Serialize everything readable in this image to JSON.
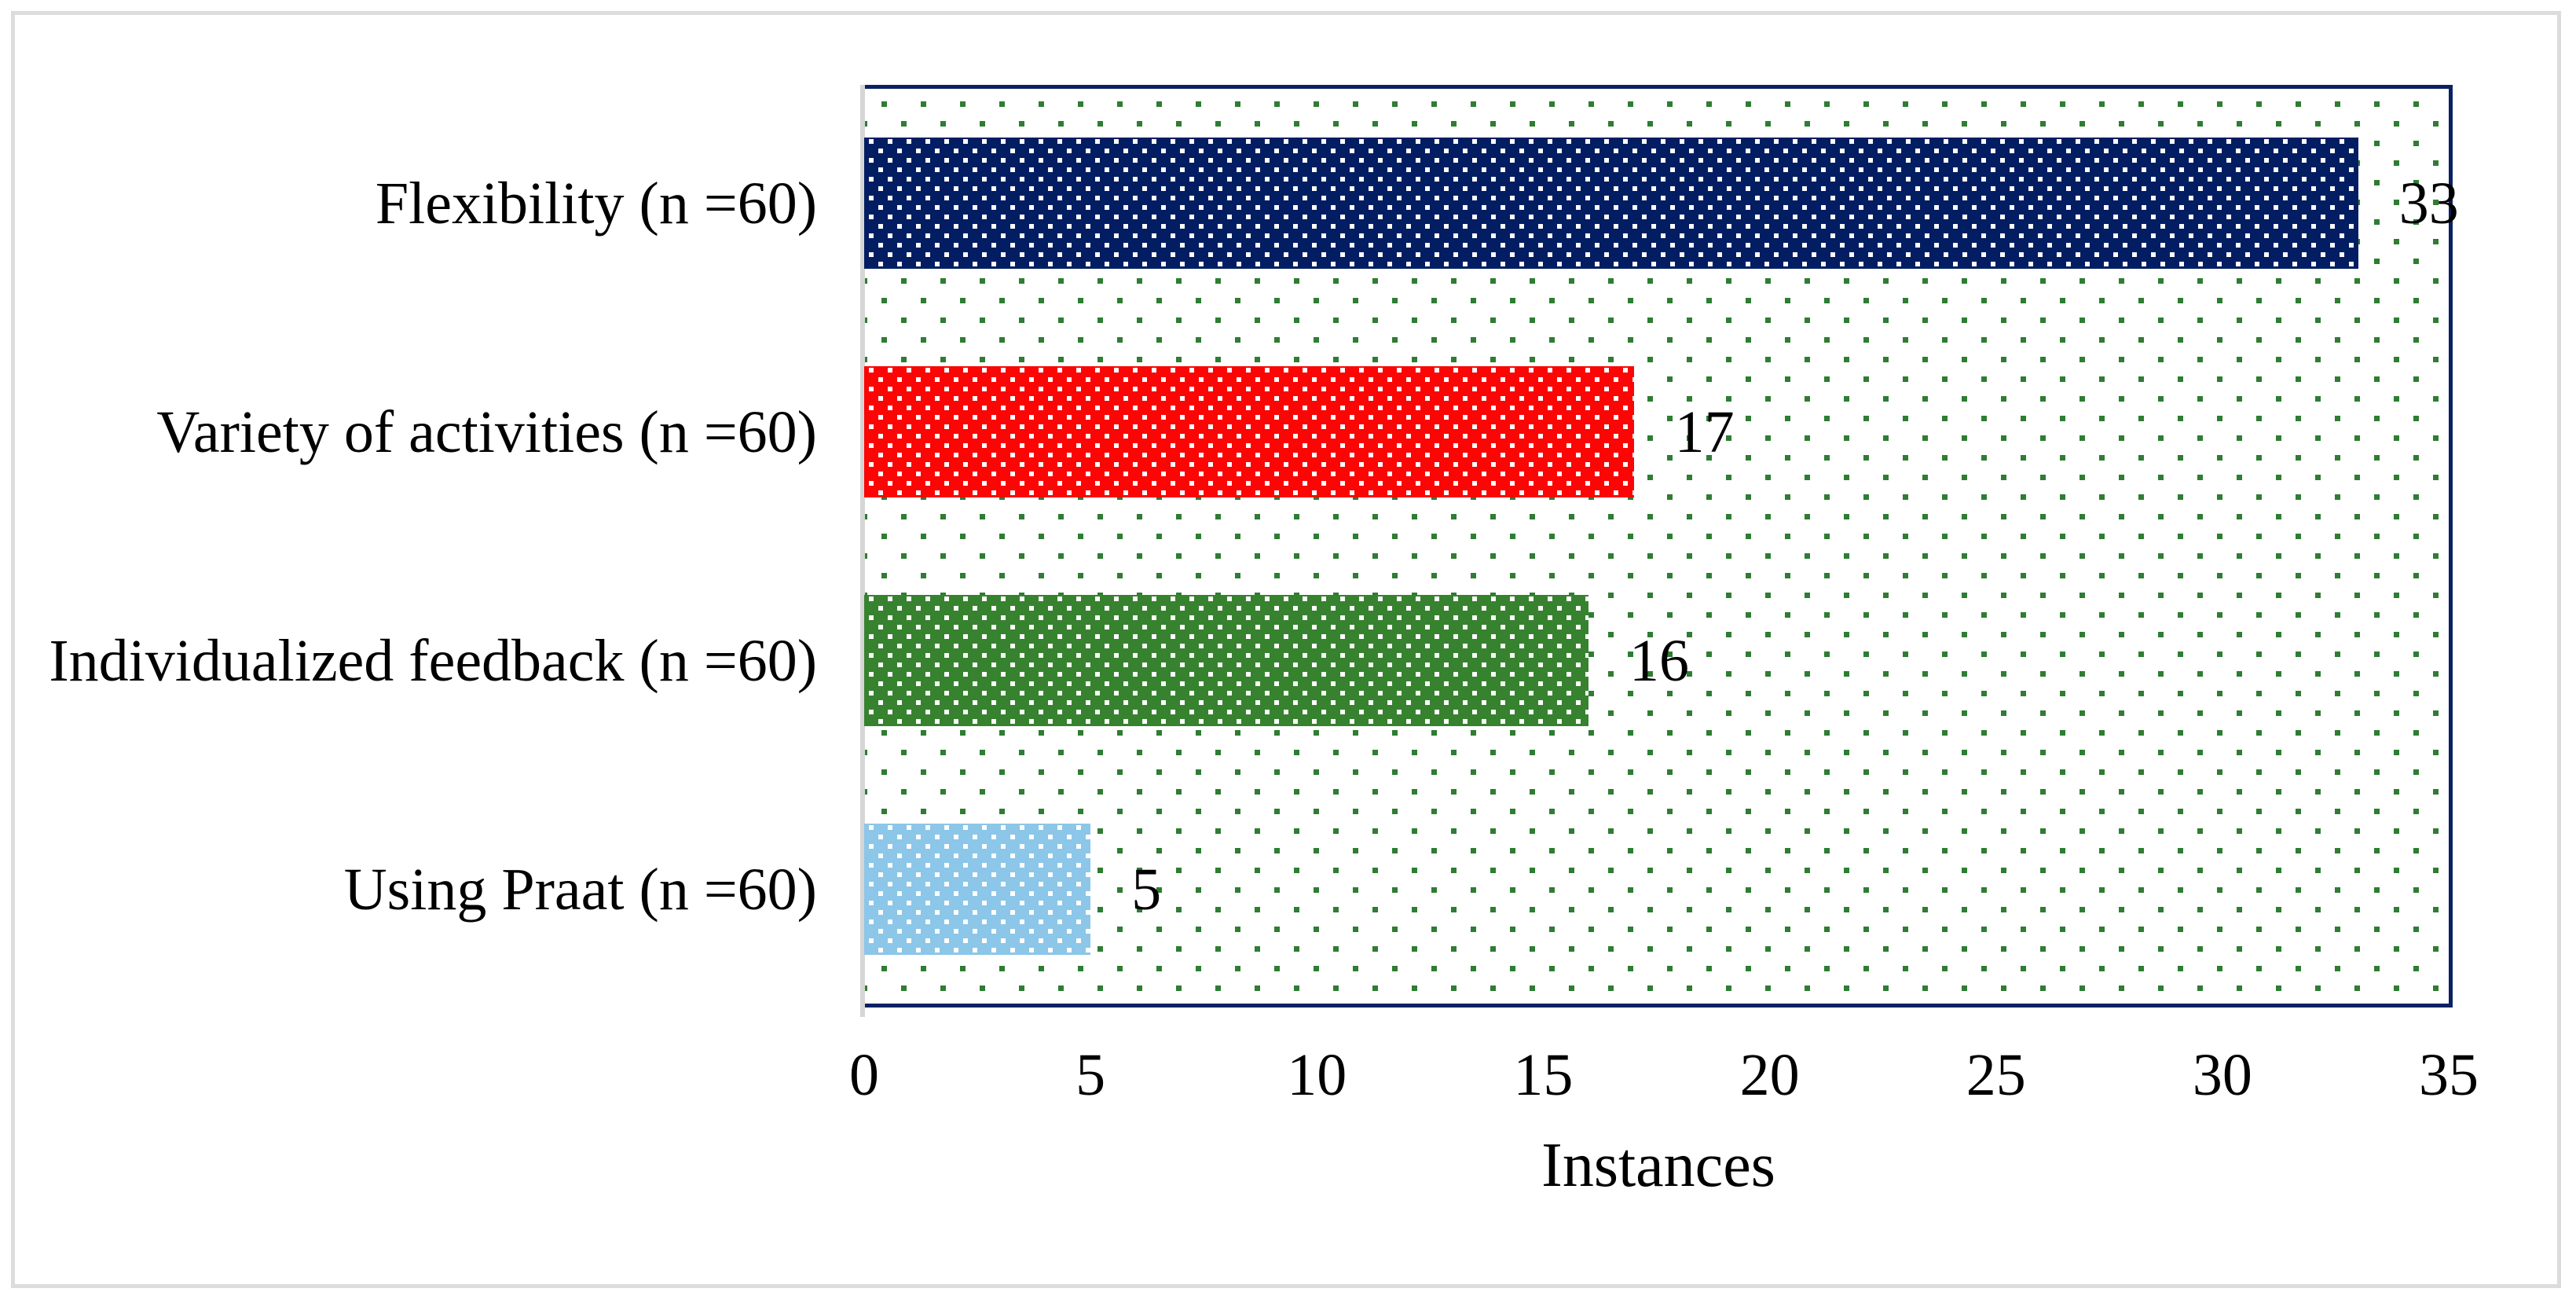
{
  "figure": {
    "background": "#ffffff",
    "border_color": "#dcdcdc"
  },
  "chart_data": {
    "type": "bar",
    "orientation": "horizontal",
    "title": "",
    "categories": [
      "Flexibility (n =60)",
      "Variety of activities (n =60)",
      "Individualized feedback (n =60)",
      "Using Praat (n =60)"
    ],
    "values": [
      33,
      17,
      16,
      5
    ],
    "data_labels": [
      "33",
      "17",
      "16",
      "5"
    ],
    "bar_colors": [
      "#021d62",
      "#fb0505",
      "#37822f",
      "#8cc6e8"
    ],
    "xlabel": "Instances",
    "ylabel": "",
    "xlim": [
      0,
      35
    ],
    "x_ticks": [
      0,
      5,
      10,
      15,
      20,
      25,
      30,
      35
    ],
    "tick_step": 5,
    "grid": false,
    "legend": false,
    "bar_fill_pattern": "white-square-dots",
    "plot_background_pattern": "green-square-dots",
    "plot_background_dot_color": "#2e7d32",
    "plot_border_color": "#0c2162",
    "axis_line_color": "#d6d6d6",
    "text_color": "#000000"
  }
}
